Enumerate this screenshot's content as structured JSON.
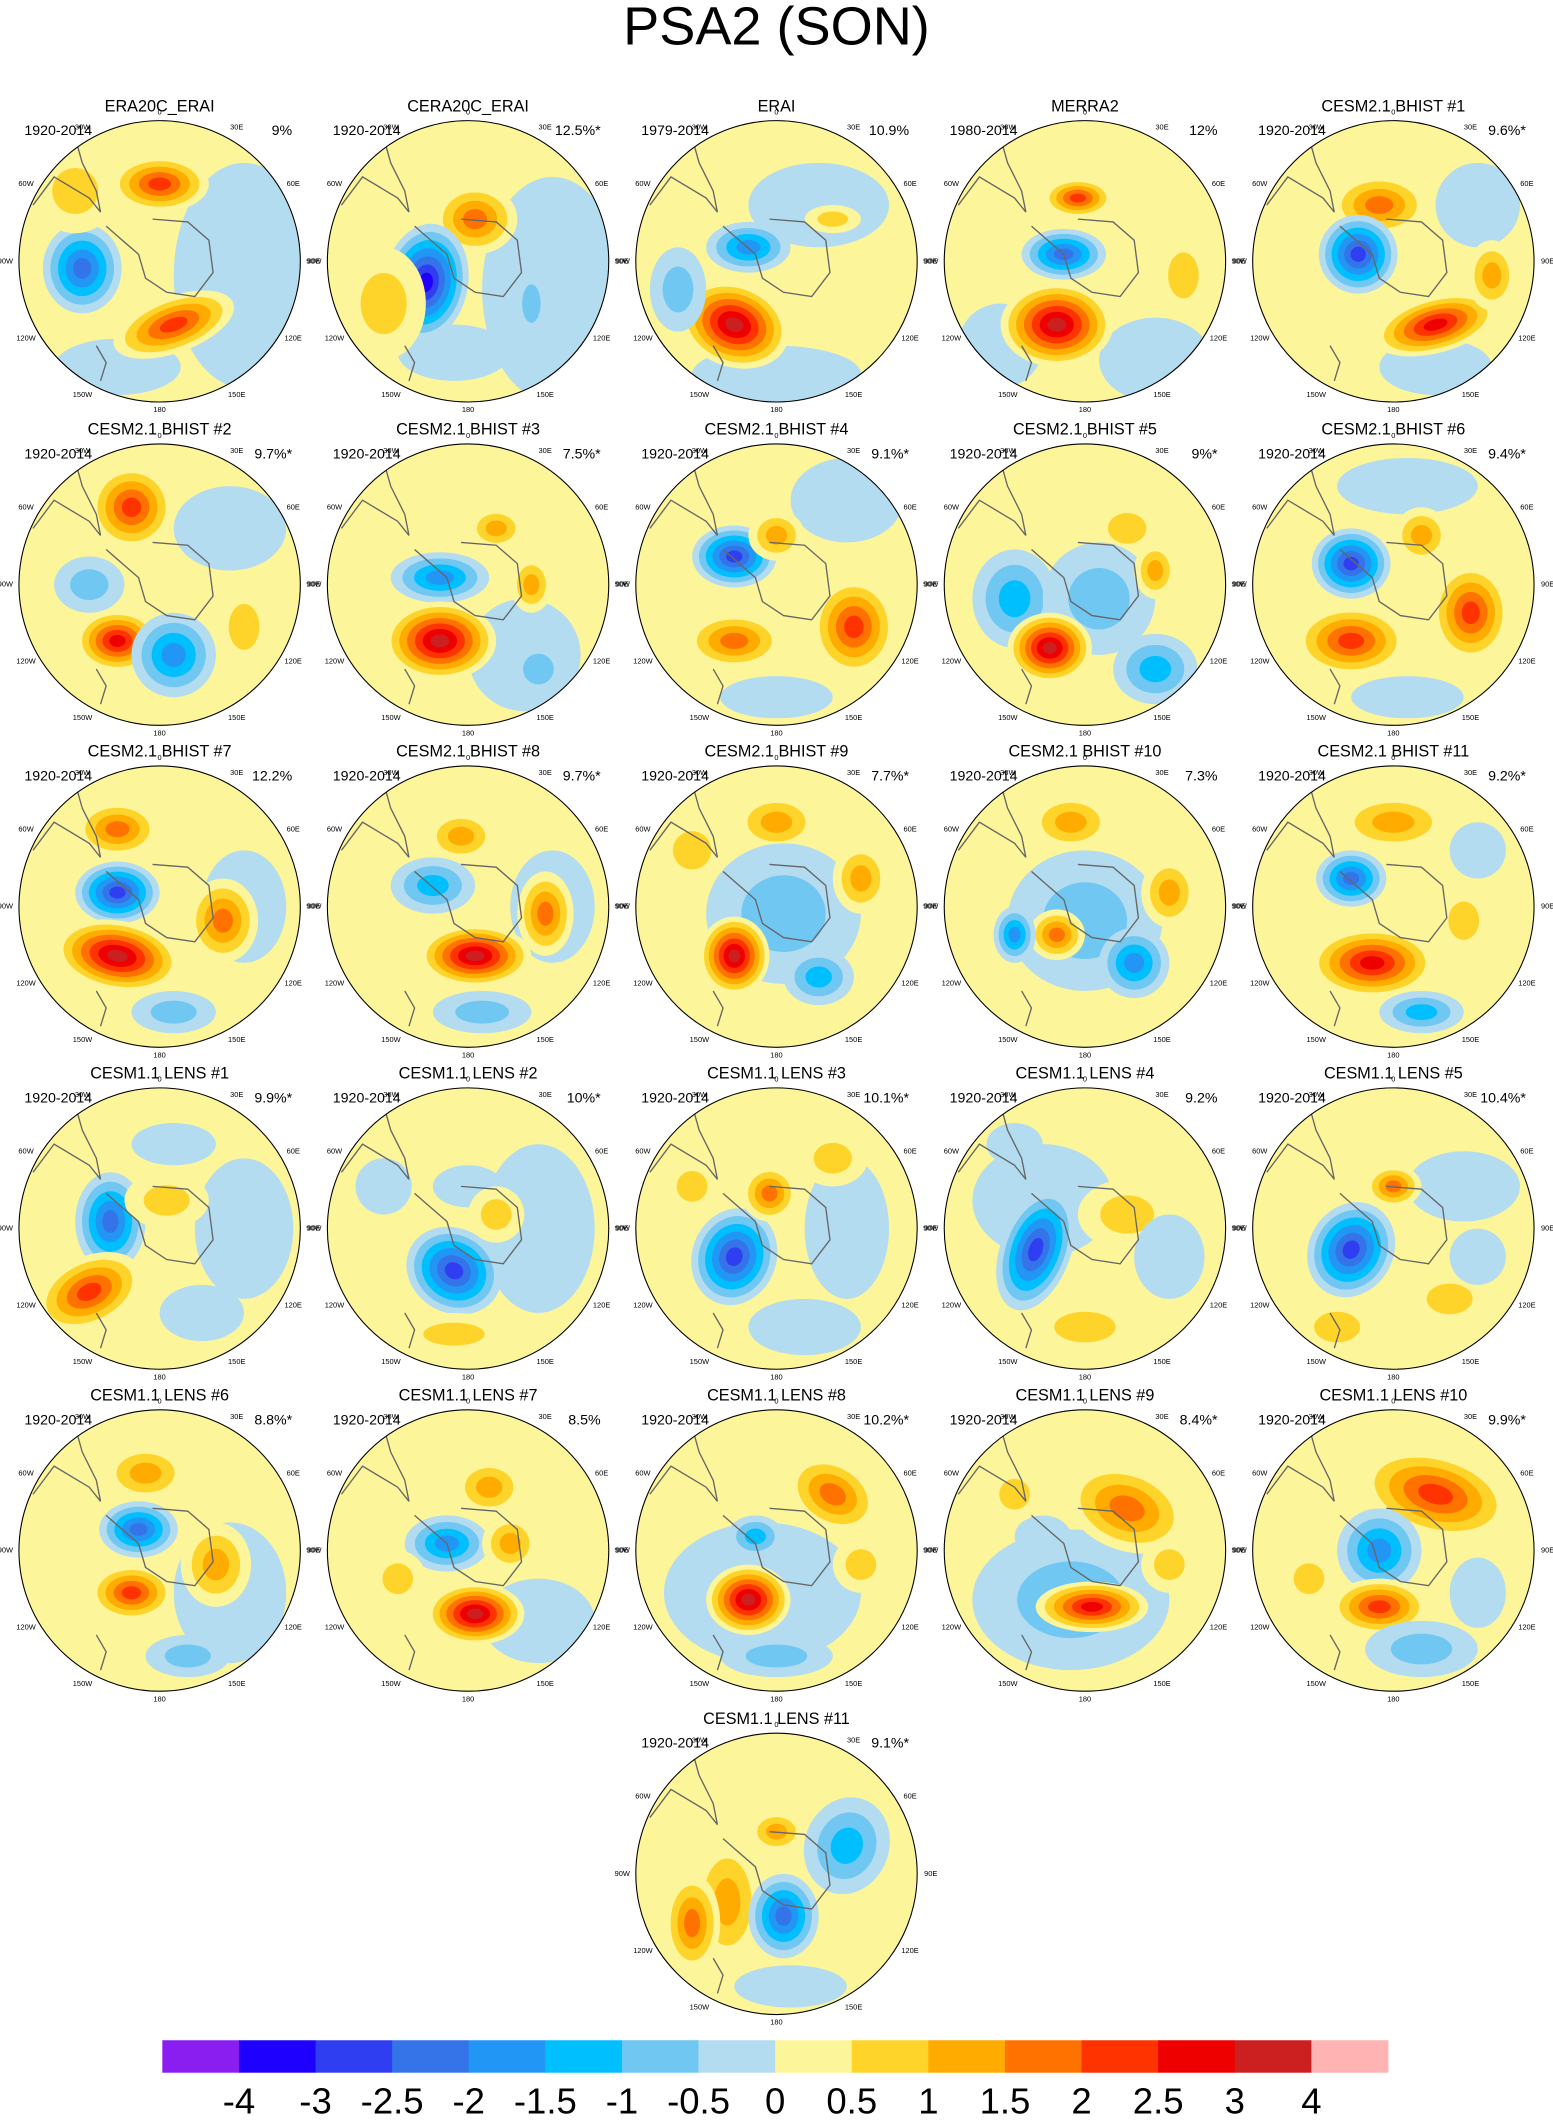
{
  "title": "PSA2 (SON)",
  "longitude_labels": [
    "0",
    "30E",
    "60E",
    "90E",
    "120E",
    "150E",
    "180",
    "150W",
    "120W",
    "90W",
    "60W",
    "30W"
  ],
  "panels": [
    {
      "title": "ERA20C_ERAI",
      "period": "1920-2014",
      "variance": "9%"
    },
    {
      "title": "CERA20C_ERAI",
      "period": "1920-2014",
      "variance": "12.5%*"
    },
    {
      "title": "ERAI",
      "period": "1979-2014",
      "variance": "10.9%"
    },
    {
      "title": "MERRA2",
      "period": "1980-2014",
      "variance": "12%"
    },
    {
      "title": "CESM2.1 BHIST #1",
      "period": "1920-2014",
      "variance": "9.6%*"
    },
    {
      "title": "CESM2.1 BHIST #2",
      "period": "1920-2014",
      "variance": "9.7%*"
    },
    {
      "title": "CESM2.1 BHIST #3",
      "period": "1920-2014",
      "variance": "7.5%*"
    },
    {
      "title": "CESM2.1 BHIST #4",
      "period": "1920-2014",
      "variance": "9.1%*"
    },
    {
      "title": "CESM2.1 BHIST #5",
      "period": "1920-2014",
      "variance": "9%*"
    },
    {
      "title": "CESM2.1 BHIST #6",
      "period": "1920-2014",
      "variance": "9.4%*"
    },
    {
      "title": "CESM2.1 BHIST #7",
      "period": "1920-2014",
      "variance": "12.2%"
    },
    {
      "title": "CESM2.1 BHIST #8",
      "period": "1920-2014",
      "variance": "9.7%*"
    },
    {
      "title": "CESM2.1 BHIST #9",
      "period": "1920-2014",
      "variance": "7.7%*"
    },
    {
      "title": "CESM2.1 BHIST #10",
      "period": "1920-2014",
      "variance": "7.3%"
    },
    {
      "title": "CESM2.1 BHIST #11",
      "period": "1920-2014",
      "variance": "9.2%*"
    },
    {
      "title": "CESM1.1 LENS #1",
      "period": "1920-2014",
      "variance": "9.9%*"
    },
    {
      "title": "CESM1.1 LENS #2",
      "period": "1920-2014",
      "variance": "10%*"
    },
    {
      "title": "CESM1.1 LENS #3",
      "period": "1920-2014",
      "variance": "10.1%*"
    },
    {
      "title": "CESM1.1 LENS #4",
      "period": "1920-2014",
      "variance": "9.2%"
    },
    {
      "title": "CESM1.1 LENS #5",
      "period": "1920-2014",
      "variance": "10.4%*"
    },
    {
      "title": "CESM1.1 LENS #6",
      "period": "1920-2014",
      "variance": "8.8%*"
    },
    {
      "title": "CESM1.1 LENS #7",
      "period": "1920-2014",
      "variance": "8.5%"
    },
    {
      "title": "CESM1.1 LENS #8",
      "period": "1920-2014",
      "variance": "10.2%*"
    },
    {
      "title": "CESM1.1 LENS #9",
      "period": "1920-2014",
      "variance": "8.4%*"
    },
    {
      "title": "CESM1.1 LENS #10",
      "period": "1920-2014",
      "variance": "9.9%*"
    },
    {
      "title": "CESM1.1 LENS #11",
      "period": "1920-2014",
      "variance": "9.1%*"
    }
  ],
  "colorbar": {
    "colors": [
      "#8a1ef0",
      "#1e00ff",
      "#2e3ef0",
      "#3473e8",
      "#2196f5",
      "#00bfff",
      "#6fc7f2",
      "#b3dcf0",
      "#fdf59a",
      "#ffd42a",
      "#ffab00",
      "#ff7200",
      "#ff3300",
      "#ee0000",
      "#cc1f1f",
      "#ffb3b3"
    ],
    "labels": [
      -4,
      -3,
      -2.5,
      -2,
      -1.5,
      -1,
      -0.5,
      0,
      0.5,
      1,
      1.5,
      2,
      2.5,
      3,
      4
    ]
  }
}
